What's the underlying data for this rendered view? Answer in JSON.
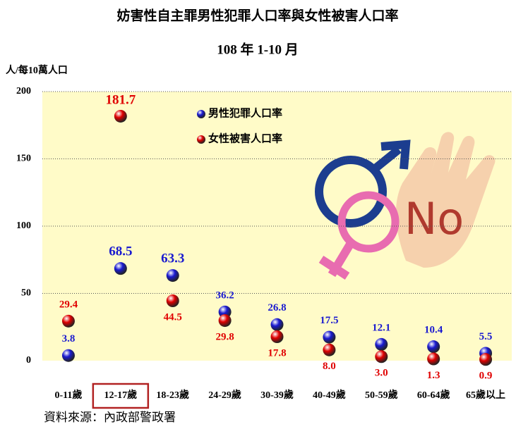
{
  "chart_data": {
    "type": "dot",
    "title": "妨害性自主罪男性犯罪人口率與女性被害人口率",
    "subtitle": "108 年 1-10 月",
    "y_label": "人/每10萬人口",
    "source": "資料來源：內政部警政署",
    "annotation": "No",
    "categories": [
      "0-11歲",
      "12-17歲",
      "18-23歲",
      "24-29歲",
      "30-39歲",
      "40-49歲",
      "50-59歲",
      "60-64歲",
      "65歲以上"
    ],
    "series": [
      {
        "name": "男性犯罪人口率",
        "color": "#1a1ad0",
        "values": [
          3.8,
          68.5,
          63.3,
          36.2,
          26.8,
          17.5,
          12.1,
          10.4,
          5.5
        ]
      },
      {
        "name": "女性被害人口率",
        "color": "#e00000",
        "values": [
          29.4,
          181.7,
          44.5,
          29.8,
          17.8,
          8.0,
          3.0,
          1.3,
          0.9
        ],
        "value_labels": [
          "29.4",
          "181.7",
          "44.5",
          "29.8",
          "17.8",
          "8.0",
          "3.0",
          "1.3",
          "0.9"
        ]
      }
    ],
    "ylim": [
      0,
      200
    ],
    "yticks": [
      0,
      50,
      100,
      150,
      200
    ],
    "grid": true
  }
}
